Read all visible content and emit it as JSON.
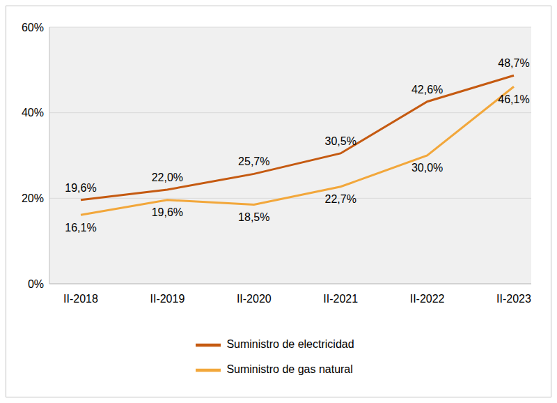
{
  "chart_data": {
    "type": "line",
    "categories": [
      "II-2018",
      "II-2019",
      "II-2020",
      "II-2021",
      "II-2022",
      "II-2023"
    ],
    "series": [
      {
        "name": "Suministro de electricidad",
        "color": "#c55a11",
        "values": [
          19.6,
          22.0,
          25.7,
          30.5,
          42.6,
          48.7
        ],
        "value_labels": [
          "19,6%",
          "22,0%",
          "25,7%",
          "30,5%",
          "42,6%",
          "48,7%"
        ]
      },
      {
        "name": "Suministro de gas natural",
        "color": "#f2a73b",
        "values": [
          16.1,
          19.6,
          18.5,
          22.7,
          30.0,
          46.1
        ],
        "value_labels": [
          "16,1%",
          "19,6%",
          "18,5%",
          "22,7%",
          "30,0%",
          "46,1%"
        ]
      }
    ],
    "ylim": [
      0,
      60
    ],
    "yticks": [
      {
        "value": 0,
        "label": "0%"
      },
      {
        "value": 20,
        "label": "20%"
      },
      {
        "value": 40,
        "label": "40%"
      },
      {
        "value": 60,
        "label": "60%"
      }
    ],
    "grid": true,
    "data_labels": true,
    "legend": "bottom"
  }
}
